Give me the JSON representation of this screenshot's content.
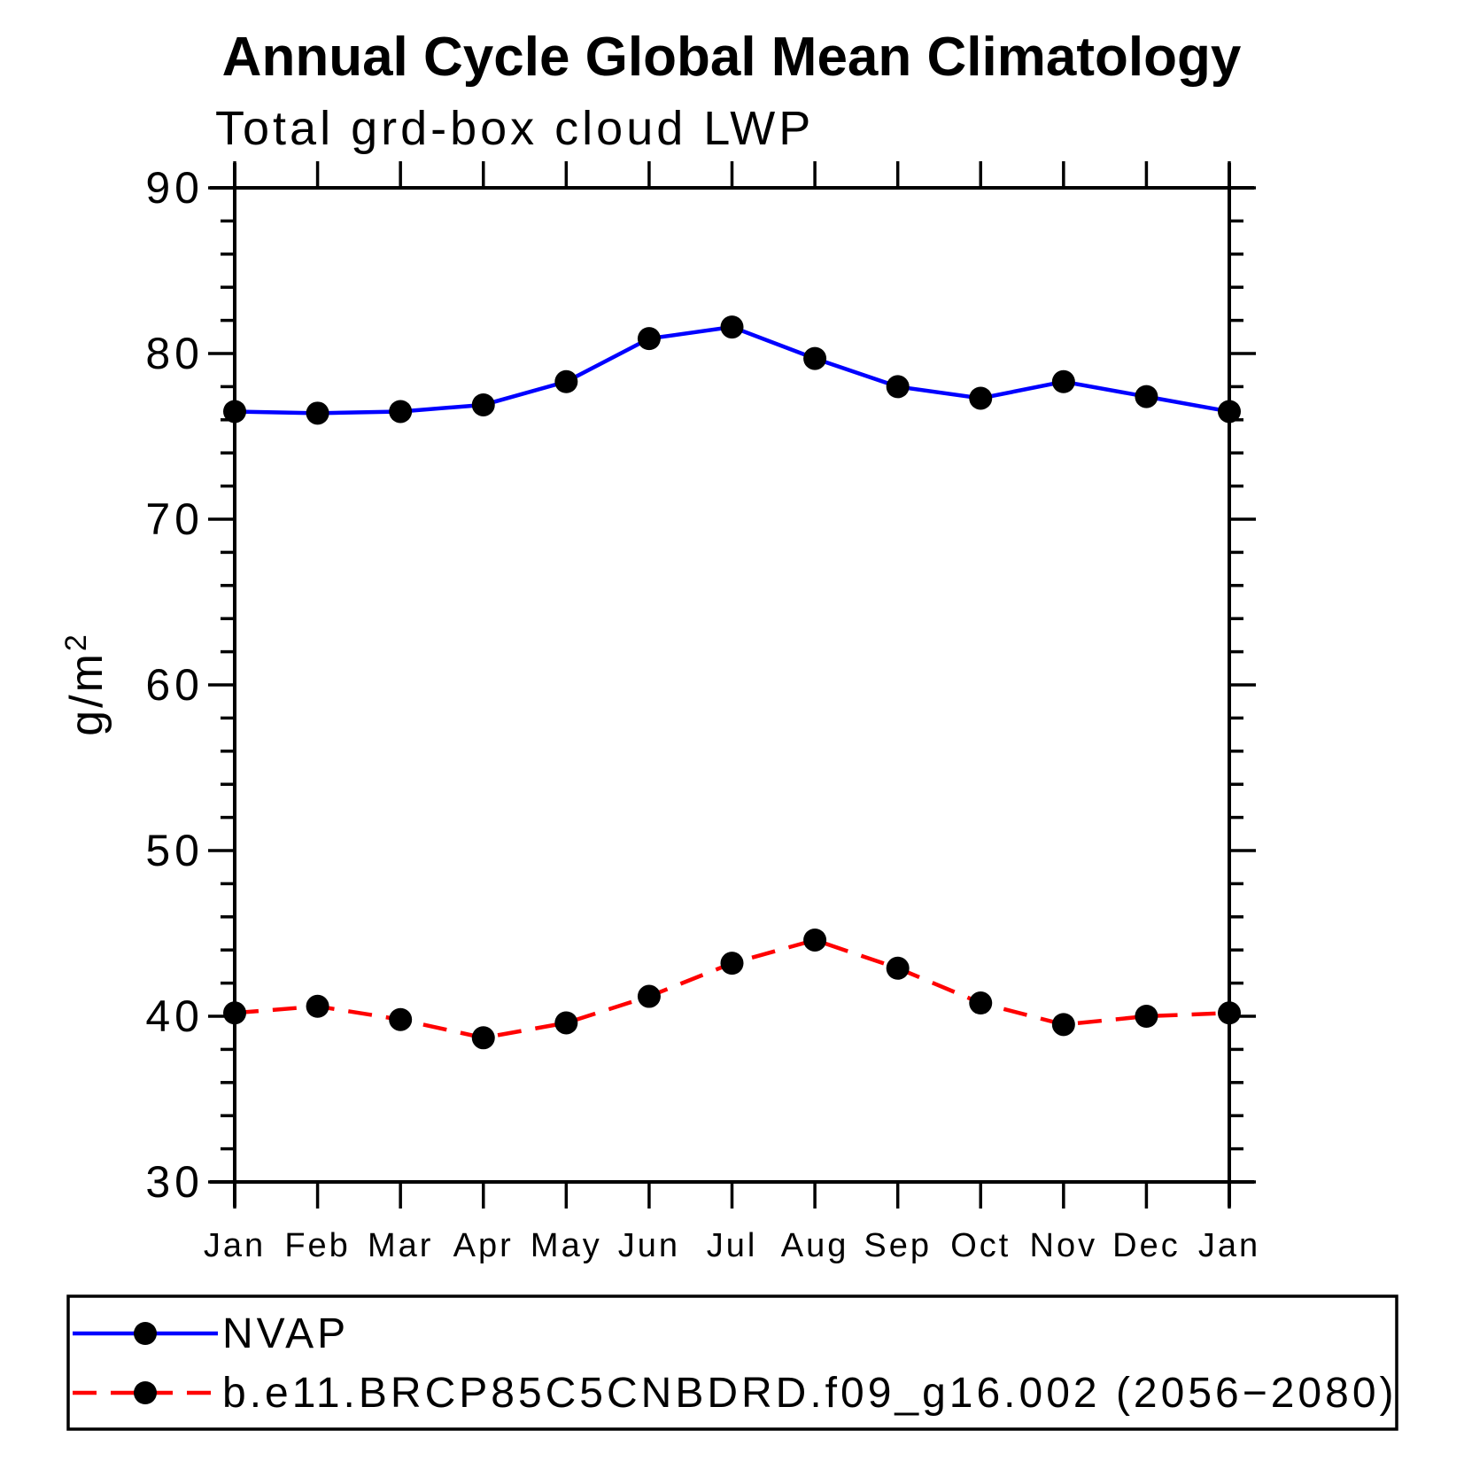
{
  "header": {
    "title": "Annual Cycle Global Mean Climatology",
    "subtitle": "Total grd-box cloud LWP"
  },
  "chart_data": {
    "type": "line",
    "categories": [
      "Jan",
      "Feb",
      "Mar",
      "Apr",
      "May",
      "Jun",
      "Jul",
      "Aug",
      "Sep",
      "Oct",
      "Nov",
      "Dec",
      "Jan"
    ],
    "xlabel": "",
    "ylabel": "g/m²",
    "ylabel_base": "g/m",
    "ylabel_exponent": "2",
    "ylim": [
      30,
      90
    ],
    "ytick_major_step": 10,
    "ytick_minor_step": 2,
    "grid": false,
    "legend_position": "bottom-left-box",
    "axis_color": "#000000",
    "marker_color": "#000000",
    "series": [
      {
        "name": "NVAP",
        "color": "#0000ff",
        "line_style": "solid",
        "marker": "filled-circle",
        "values": [
          76.5,
          76.4,
          76.5,
          76.9,
          78.3,
          80.9,
          81.6,
          79.7,
          78.0,
          77.3,
          78.3,
          77.4,
          76.5
        ]
      },
      {
        "name": "b.e11.BRCP85C5CNBDRD.f09_g16.002 (2056−2080)",
        "color": "#ff0000",
        "line_style": "dashed",
        "marker": "filled-circle",
        "values": [
          40.2,
          40.6,
          39.8,
          38.7,
          39.6,
          41.2,
          43.2,
          44.6,
          42.9,
          40.8,
          39.5,
          40.0,
          40.2
        ]
      }
    ]
  }
}
